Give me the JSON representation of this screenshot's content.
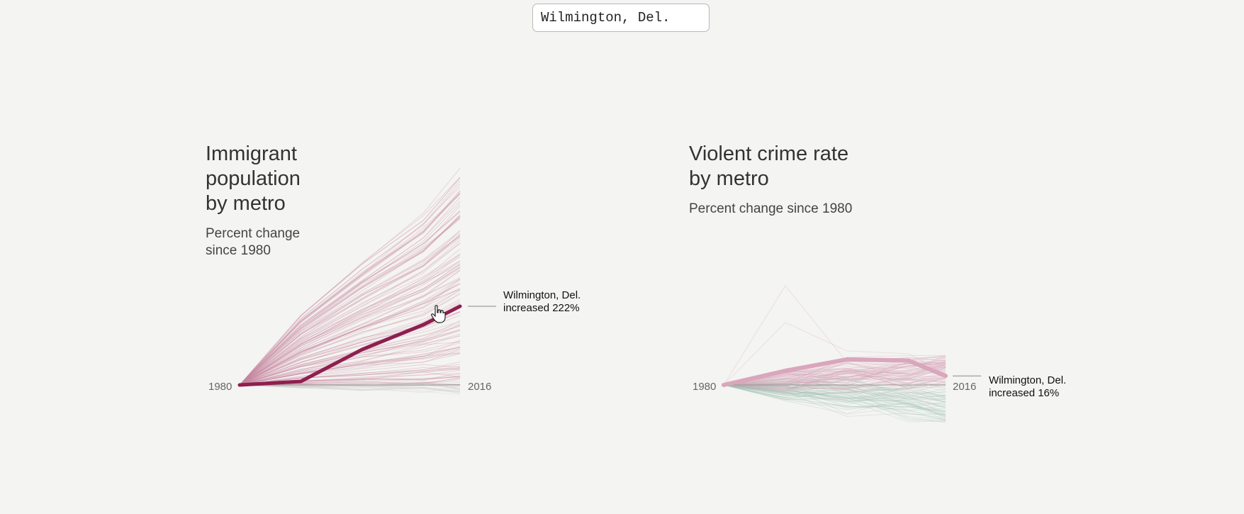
{
  "search": {
    "value": "Wilmington, Del."
  },
  "charts_text": {
    "immigrant": {
      "title": "Immigrant\npopulation\nby metro",
      "subtitle": "Percent change\nsince 1980",
      "annotation_name": "Wilmington, Del.",
      "annotation_value": "increased 222%"
    },
    "crime": {
      "title": "Violent crime rate\nby metro",
      "subtitle": "Percent change since 1980",
      "annotation_name": "Wilmington, Del.",
      "annotation_value": "increased 16%"
    }
  },
  "chart_data": [
    {
      "type": "line",
      "title": "Immigrant population by metro",
      "subtitle": "Percent change since 1980",
      "x": [
        1980,
        1990,
        2000,
        2010,
        2016
      ],
      "x_tick_labels": [
        "1980",
        "2016"
      ],
      "ylim": [
        -50,
        650
      ],
      "highlight": {
        "name": "Wilmington, Del.",
        "values": [
          0,
          10,
          100,
          170,
          222
        ]
      },
      "colors": {
        "highlight": "#8e1f4f",
        "background_up": "#c7859d",
        "background_down": "#c2c2c2",
        "baseline": "#999999"
      }
    },
    {
      "type": "line",
      "title": "Violent crime rate by metro",
      "subtitle": "Percent change since 1980",
      "x": [
        1980,
        1990,
        2000,
        2010,
        2016
      ],
      "x_tick_labels": [
        "1980",
        "2016"
      ],
      "ylim": [
        -80,
        250
      ],
      "highlight": {
        "name": "Wilmington, Del.",
        "values": [
          0,
          25,
          45,
          43,
          16
        ]
      },
      "colors": {
        "highlight": "#d9a6bb",
        "background_up": "#d8a6ba",
        "background_down": "#9fc0b2",
        "baseline": "#999999"
      }
    }
  ]
}
